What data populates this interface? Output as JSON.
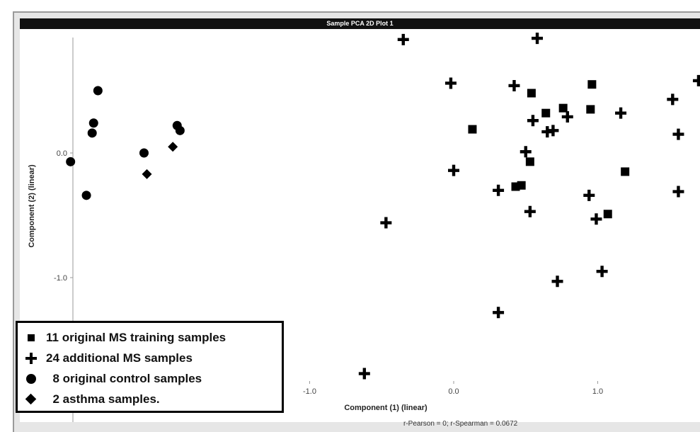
{
  "chart_data": {
    "type": "scatter",
    "title": "Sample PCA 2D Plot 1",
    "xlabel": "Component (1) (linear)",
    "ylabel": "Component (2) (linear)",
    "footer": "r-Pearson = 0;  r-Spearman = 0.0672",
    "x_ticks": [
      {
        "value": -1.0,
        "label": "-1.0"
      },
      {
        "value": 0.0,
        "label": "0.0"
      },
      {
        "value": 1.0,
        "label": "1.0"
      }
    ],
    "y_ticks": [
      {
        "value": 0.0,
        "label": "0.0"
      },
      {
        "value": -1.0,
        "label": "-1.0"
      }
    ],
    "xlim": [
      -2.7,
      1.72
    ],
    "ylim": [
      -2.0,
      0.96
    ],
    "grid": false,
    "legend_position": "bottom-left",
    "series": [
      {
        "name": "11 original MS training samples",
        "marker": "square",
        "color": "#000000",
        "points": [
          [
            0.13,
            0.19
          ],
          [
            0.43,
            -0.27
          ],
          [
            0.47,
            -0.26
          ],
          [
            0.53,
            -0.07
          ],
          [
            0.54,
            0.48
          ],
          [
            0.64,
            0.32
          ],
          [
            0.76,
            0.36
          ],
          [
            0.95,
            0.35
          ],
          [
            0.96,
            0.55
          ],
          [
            1.07,
            -0.49
          ],
          [
            1.19,
            -0.15
          ]
        ]
      },
      {
        "name": "24 additional MS samples",
        "marker": "plus",
        "color": "#000000",
        "points": [
          [
            -0.35,
            0.91
          ],
          [
            0.58,
            0.92
          ],
          [
            1.7,
            0.58
          ],
          [
            -0.02,
            0.56
          ],
          [
            0.42,
            0.54
          ],
          [
            1.52,
            0.43
          ],
          [
            1.16,
            0.32
          ],
          [
            0.55,
            0.26
          ],
          [
            0.65,
            0.17
          ],
          [
            0.69,
            0.18
          ],
          [
            0.79,
            0.29
          ],
          [
            1.56,
            0.15
          ],
          [
            0.5,
            0.01
          ],
          [
            0.0,
            -0.14
          ],
          [
            0.31,
            -0.3
          ],
          [
            0.53,
            -0.47
          ],
          [
            0.94,
            -0.34
          ],
          [
            0.99,
            -0.53
          ],
          [
            1.56,
            -0.31
          ],
          [
            -0.47,
            -0.56
          ],
          [
            1.03,
            -0.95
          ],
          [
            0.72,
            -1.03
          ],
          [
            0.31,
            -1.28
          ],
          [
            -0.62,
            -1.77
          ]
        ]
      },
      {
        "name": "8 original control samples",
        "marker": "circle",
        "color": "#000000",
        "points": [
          [
            -2.66,
            -0.07
          ],
          [
            -2.55,
            -0.34
          ],
          [
            -2.47,
            0.5
          ],
          [
            -2.5,
            0.24
          ],
          [
            -2.51,
            0.16
          ],
          [
            -2.15,
            0.0
          ],
          [
            -1.92,
            0.22
          ],
          [
            -1.9,
            0.18
          ]
        ]
      },
      {
        "name": "2 asthma samples.",
        "marker": "diamond",
        "color": "#000000",
        "points": [
          [
            -2.13,
            -0.17
          ],
          [
            -1.95,
            0.05
          ]
        ]
      }
    ]
  },
  "legend": {
    "items": [
      {
        "label": "11 original MS training samples"
      },
      {
        "label": "24 additional MS samples"
      },
      {
        "label": "  8 original control samples"
      },
      {
        "label": "  2 asthma samples."
      }
    ]
  }
}
